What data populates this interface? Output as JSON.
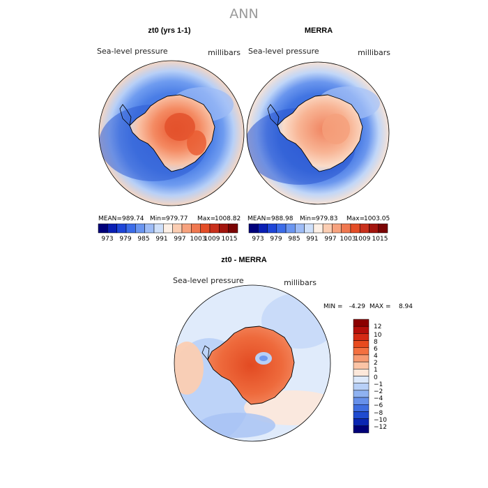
{
  "page_title": "ANN",
  "colors": {
    "ocean_lo": "#2a5fd8",
    "ocean_mid": "#5a8eee",
    "ocean_hi": "#c8dcf8",
    "land_hi": "#e0462a",
    "land_mid": "#f4a27e",
    "coast": "#000000"
  },
  "chart_data": [
    {
      "type": "heatmap",
      "title": "zt0 (yrs 1-1)",
      "left_label": "Sea-level pressure",
      "right_label": "millibars",
      "stats": {
        "mean_label": "MEAN=",
        "mean": "989.74",
        "min_label": "Min=",
        "min": "979.77",
        "max_label": "Max=",
        "max": "1008.82"
      },
      "colorbar": {
        "tick_labels": [
          "973",
          "979",
          "985",
          "991",
          "997",
          "1003",
          "1009",
          "1015"
        ],
        "colors": [
          "#00007a",
          "#0a1fb4",
          "#1f46d8",
          "#3c6ce8",
          "#6a95f0",
          "#9ebcf6",
          "#cfe0fa",
          "#fdf0e6",
          "#fbcdb2",
          "#f7a27e",
          "#f07850",
          "#e44d26",
          "#c9301c",
          "#a3150e",
          "#7a0404"
        ]
      }
    },
    {
      "type": "heatmap",
      "title": "MERRA",
      "left_label": "Sea-level pressure",
      "right_label": "millibars",
      "stats": {
        "mean_label": "MEAN=",
        "mean": "988.98",
        "min_label": "Min=",
        "min": "979.83",
        "max_label": "Max=",
        "max": "1003.05"
      },
      "colorbar": {
        "tick_labels": [
          "973",
          "979",
          "985",
          "991",
          "997",
          "1003",
          "1009",
          "1015"
        ],
        "colors": [
          "#00007a",
          "#0a1fb4",
          "#1f46d8",
          "#3c6ce8",
          "#6a95f0",
          "#9ebcf6",
          "#cfe0fa",
          "#fdf0e6",
          "#fbcdb2",
          "#f7a27e",
          "#f07850",
          "#e44d26",
          "#c9301c",
          "#a3150e",
          "#7a0404"
        ]
      }
    },
    {
      "type": "heatmap",
      "title": "zt0 - MERRA",
      "left_label": "Sea-level pressure",
      "right_label": "millibars",
      "stats": {
        "min_label": "MIN =",
        "min": "-4.29",
        "max_label": "MAX =",
        "max": "8.94"
      },
      "colorbar": {
        "tick_labels": [
          "12",
          "10",
          "8",
          "6",
          "4",
          "2",
          "1",
          "0",
          "−1",
          "−2",
          "−4",
          "−6",
          "−8",
          "−10",
          "−12"
        ],
        "colors": [
          "#8b0000",
          "#b40f0a",
          "#d42a14",
          "#e84a1e",
          "#f47040",
          "#f79a72",
          "#fbc4a6",
          "#fde8da",
          "#dde9fb",
          "#b8d0f7",
          "#8fb2f1",
          "#6790ea",
          "#3f6de0",
          "#1f4bd0",
          "#0a26b2",
          "#000078"
        ]
      }
    }
  ]
}
